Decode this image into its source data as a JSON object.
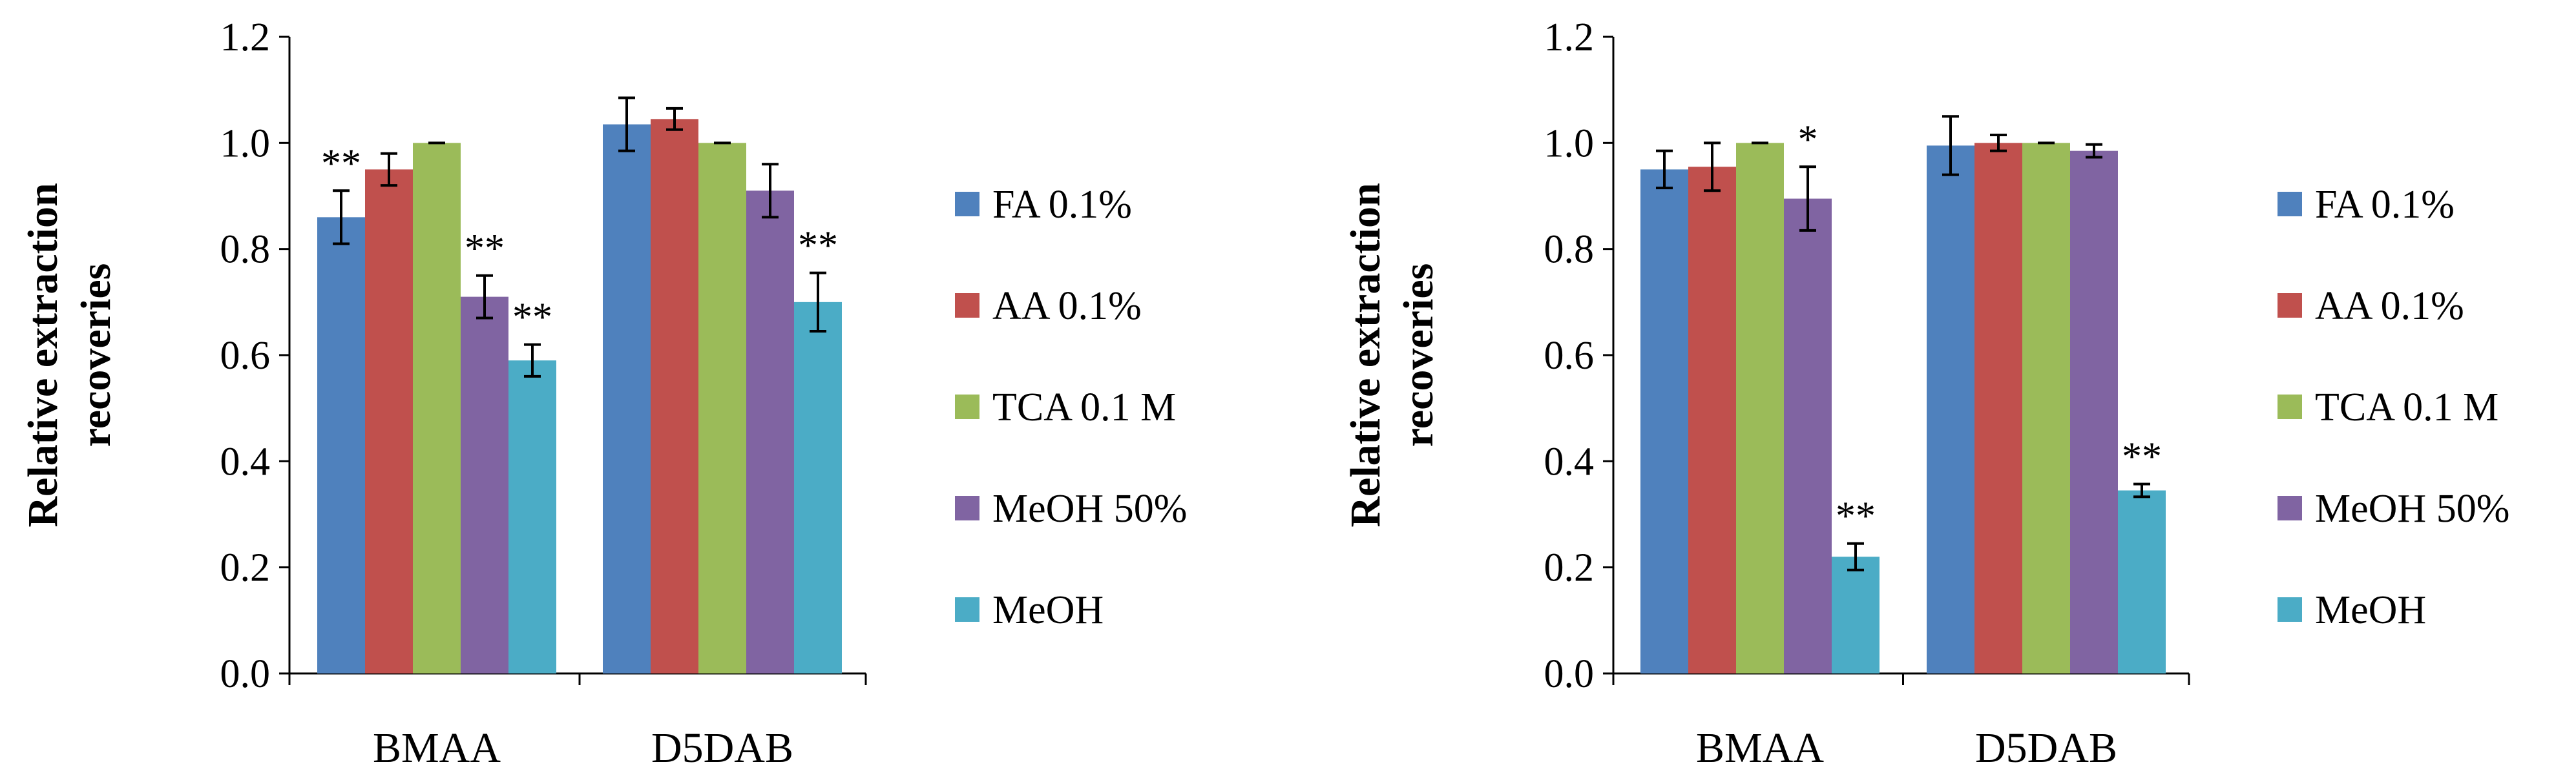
{
  "chart_data": [
    {
      "type": "bar",
      "ylabel_lines": [
        "Relative extraction",
        "recoveries"
      ],
      "ylim": [
        0,
        1.2
      ],
      "yticks": [
        "0.0",
        "0.2",
        "0.4",
        "0.6",
        "0.8",
        "1.0",
        "1.2"
      ],
      "categories": [
        "BMAA",
        "D5DAB"
      ],
      "legend_position": "right",
      "series": [
        {
          "name": "FA 0.1%",
          "color": "#4f81bd",
          "values": [
            0.86,
            1.035
          ],
          "errors": [
            0.05,
            0.05
          ],
          "annotations": [
            "**",
            ""
          ]
        },
        {
          "name": "AA 0.1%",
          "color": "#c0504d",
          "values": [
            0.95,
            1.045
          ],
          "errors": [
            0.03,
            0.02
          ],
          "annotations": [
            "",
            ""
          ]
        },
        {
          "name": "TCA 0.1 M",
          "color": "#9bbb59",
          "values": [
            1.0,
            1.0
          ],
          "errors": [
            0.0,
            0.0
          ],
          "annotations": [
            "",
            ""
          ]
        },
        {
          "name": "MeOH 50%",
          "color": "#8064a2",
          "values": [
            0.71,
            0.91
          ],
          "errors": [
            0.04,
            0.05
          ],
          "annotations": [
            "**",
            ""
          ]
        },
        {
          "name": "MeOH",
          "color": "#4bacc6",
          "values": [
            0.59,
            0.7
          ],
          "errors": [
            0.03,
            0.055
          ],
          "annotations": [
            "**",
            "**"
          ]
        }
      ]
    },
    {
      "type": "bar",
      "ylabel_lines": [
        "Relative extraction",
        "recoveries"
      ],
      "ylim": [
        0,
        1.2
      ],
      "yticks": [
        "0.0",
        "0.2",
        "0.4",
        "0.6",
        "0.8",
        "1.0",
        "1.2"
      ],
      "categories": [
        "BMAA",
        "D5DAB"
      ],
      "legend_position": "right",
      "series": [
        {
          "name": "FA 0.1%",
          "color": "#4f81bd",
          "values": [
            0.95,
            0.995
          ],
          "errors": [
            0.035,
            0.055
          ],
          "annotations": [
            "",
            ""
          ]
        },
        {
          "name": "AA 0.1%",
          "color": "#c0504d",
          "values": [
            0.955,
            1.0
          ],
          "errors": [
            0.045,
            0.015
          ],
          "annotations": [
            "",
            ""
          ]
        },
        {
          "name": "TCA 0.1 M",
          "color": "#9bbb59",
          "values": [
            1.0,
            1.0
          ],
          "errors": [
            0.0,
            0.0
          ],
          "annotations": [
            "",
            ""
          ]
        },
        {
          "name": "MeOH 50%",
          "color": "#8064a2",
          "values": [
            0.895,
            0.985
          ],
          "errors": [
            0.06,
            0.012
          ],
          "annotations": [
            "*",
            ""
          ]
        },
        {
          "name": "MeOH",
          "color": "#4bacc6",
          "values": [
            0.22,
            0.345
          ],
          "errors": [
            0.025,
            0.012
          ],
          "annotations": [
            "**",
            "**"
          ]
        }
      ]
    }
  ]
}
